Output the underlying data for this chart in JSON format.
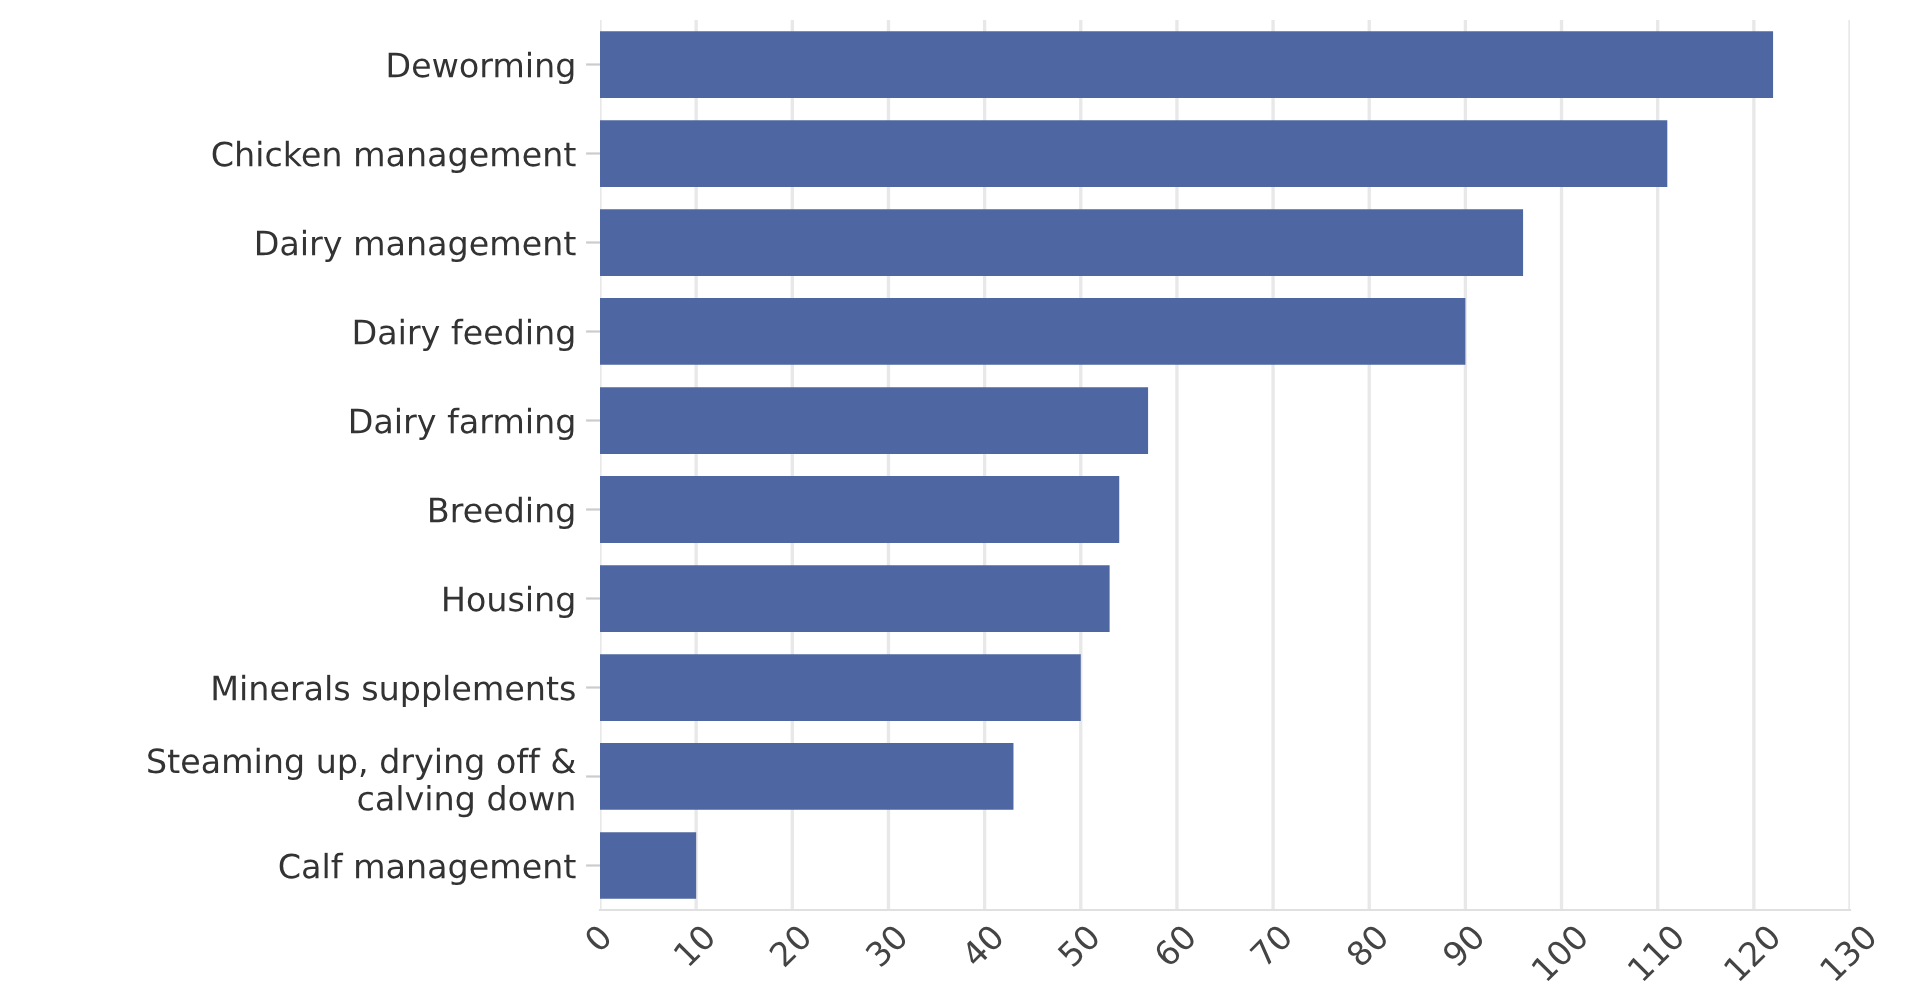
{
  "chart_data": {
    "type": "bar",
    "orientation": "horizontal",
    "categories": [
      "Deworming",
      "Chicken management",
      "Dairy management",
      "Dairy feeding",
      "Dairy farming",
      "Breeding",
      "Housing",
      "Minerals supplements",
      "Steaming up, drying off & calving down",
      "Calf management"
    ],
    "values": [
      122,
      111,
      96,
      90,
      57,
      54,
      53,
      50,
      43,
      10
    ],
    "color": "#4a64a0",
    "xlim": [
      0,
      130
    ],
    "xticks": [
      0,
      10,
      20,
      30,
      40,
      50,
      60,
      70,
      80,
      90,
      100,
      110,
      120,
      130
    ],
    "grid": "x"
  }
}
